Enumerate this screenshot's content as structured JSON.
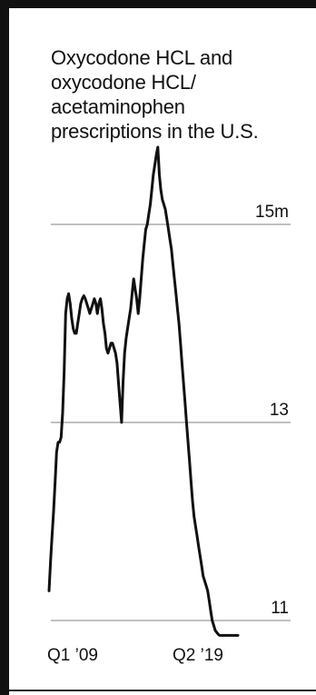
{
  "chart_data": {
    "type": "line",
    "title_lines": [
      "Oxycodone HCL and",
      "oxycodone HCL/",
      "acetaminophen",
      "prescriptions in the U.S."
    ],
    "title": "Oxycodone HCL and oxycodone HCL/ acetaminophen prescriptions in the U.S.",
    "xlabel": "",
    "ylabel": "",
    "x_range": [
      "2009-01",
      "2019-06"
    ],
    "x_tick_labels": [
      "Q1 ’09",
      "Q2 ’19"
    ],
    "y_ticks": [
      {
        "value": 15,
        "label": "15m"
      },
      {
        "value": 13,
        "label": "13"
      },
      {
        "value": 11,
        "label": "11"
      }
    ],
    "ylim": [
      11,
      15.3
    ],
    "grid": "horizontal lines at 11, 13, 15",
    "line_color": "#111111",
    "gridline_color": "#9a9a9a",
    "series": [
      {
        "x": [
          "2009-01",
          "2009-02",
          "2009-03",
          "2009-04",
          "2009-05",
          "2009-06",
          "2009-07",
          "2009-08",
          "2009-09",
          "2009-10",
          "2009-11",
          "2009-12",
          "2010-01",
          "2010-02",
          "2010-03",
          "2010-04",
          "2010-05",
          "2010-06",
          "2010-07",
          "2010-08",
          "2010-09",
          "2010-10",
          "2010-11",
          "2010-12",
          "2011-01",
          "2011-02",
          "2011-03",
          "2011-04",
          "2011-05",
          "2011-06",
          "2011-07",
          "2011-08",
          "2011-09",
          "2011-10",
          "2011-11",
          "2011-12",
          "2012-01",
          "2012-02",
          "2012-03",
          "2012-04",
          "2012-05",
          "2012-06",
          "2012-07",
          "2012-08",
          "2012-09",
          "2012-10",
          "2012-11",
          "2012-12",
          "2013-01",
          "2013-02",
          "2013-03",
          "2013-04",
          "2013-05",
          "2013-06",
          "2013-07",
          "2013-08",
          "2013-09",
          "2013-10",
          "2013-11",
          "2013-12",
          "2014-01",
          "2014-02",
          "2014-03",
          "2014-04",
          "2014-05",
          "2014-06",
          "2014-07",
          "2014-08",
          "2014-09",
          "2014-10",
          "2014-11",
          "2014-12",
          "2015-01",
          "2015-02",
          "2015-03",
          "2015-04",
          "2015-05",
          "2015-06",
          "2015-07",
          "2015-08",
          "2015-09",
          "2015-10",
          "2015-11",
          "2015-12",
          "2016-01",
          "2016-02",
          "2016-03",
          "2016-04",
          "2016-05",
          "2016-06",
          "2016-07",
          "2016-08",
          "2016-09",
          "2016-10",
          "2016-11",
          "2016-12",
          "2017-01",
          "2017-02",
          "2017-03",
          "2017-04",
          "2017-05",
          "2017-06",
          "2017-07",
          "2017-08",
          "2017-09",
          "2017-10",
          "2017-11",
          "2017-12",
          "2018-01",
          "2018-02",
          "2018-03",
          "2018-04",
          "2018-05",
          "2018-06",
          "2018-07",
          "2018-08",
          "2018-09",
          "2018-10",
          "2018-11",
          "2018-12",
          "2019-01",
          "2019-02",
          "2019-03",
          "2019-04",
          "2019-05",
          "2019-06"
        ],
        "values": [
          11.3,
          11.6,
          11.85,
          12.1,
          12.4,
          12.7,
          12.8,
          12.8,
          12.85,
          13.1,
          13.5,
          14.1,
          14.25,
          14.3,
          14.2,
          14.05,
          13.95,
          13.9,
          13.9,
          14.0,
          14.1,
          14.2,
          14.25,
          14.28,
          14.25,
          14.2,
          14.15,
          14.1,
          14.15,
          14.2,
          14.25,
          14.2,
          14.1,
          14.2,
          14.25,
          14.15,
          14.0,
          13.9,
          13.75,
          13.7,
          13.75,
          13.8,
          13.8,
          13.75,
          13.7,
          13.6,
          13.4,
          13.2,
          13.0,
          13.4,
          13.7,
          13.85,
          13.95,
          14.05,
          14.15,
          14.3,
          14.45,
          14.35,
          14.25,
          14.1,
          14.25,
          14.45,
          14.65,
          14.8,
          14.95,
          15.0,
          15.1,
          15.2,
          15.35,
          15.5,
          15.6,
          15.7,
          15.78,
          15.5,
          15.35,
          15.25,
          15.2,
          15.15,
          15.05,
          14.95,
          14.85,
          14.75,
          14.6,
          14.45,
          14.3,
          14.15,
          14.0,
          13.8,
          13.6,
          13.4,
          13.2,
          13.0,
          12.8,
          12.6,
          12.4,
          12.2,
          12.05,
          11.95,
          11.85,
          11.75,
          11.65,
          11.55,
          11.45,
          11.4,
          11.35,
          11.3,
          11.2,
          11.1,
          11.0,
          10.95,
          10.9,
          10.88,
          10.86,
          10.85,
          10.85,
          10.85,
          10.85,
          10.85,
          10.85,
          10.85,
          10.85,
          10.85,
          10.85,
          10.85,
          10.85,
          10.85
        ]
      }
    ]
  }
}
